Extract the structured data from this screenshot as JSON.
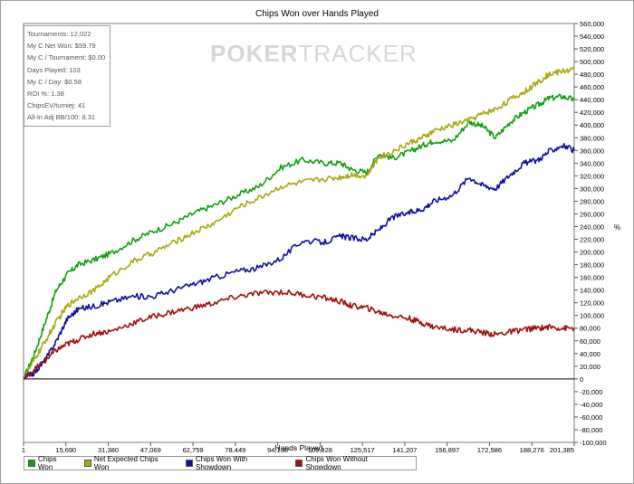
{
  "chart_data": {
    "type": "line",
    "title": "Chips Won over Hands Played",
    "xlabel": "Hands Played",
    "ylabel": "",
    "y2label": "%",
    "xticks": [
      "1",
      "15,690",
      "31,380",
      "47,069",
      "62,759",
      "78,449",
      "94,138",
      "109,828",
      "125,517",
      "141,207",
      "156,897",
      "172,586",
      "188,276",
      "201,385"
    ],
    "xlim": [
      1,
      201385
    ],
    "ylim": [
      -100000,
      560000
    ],
    "ystep": 20000,
    "grid": false,
    "legend_position": "bottom-left",
    "series": [
      {
        "name": "Chips Won",
        "color": "#10a010",
        "x": [
          1,
          4000,
          8000,
          12000,
          16000,
          20000,
          26000,
          32000,
          40000,
          47069,
          55000,
          62759,
          70000,
          78449,
          86000,
          94138,
          102000,
          109828,
          116000,
          120000,
          125517,
          130000,
          135000,
          141207,
          146000,
          150000,
          156897,
          163000,
          168000,
          172586,
          178000,
          183000,
          188276,
          192000,
          197000,
          201385
        ],
        "y": [
          0,
          40000,
          90000,
          140000,
          165000,
          180000,
          188000,
          198000,
          218000,
          232000,
          245000,
          262000,
          274000,
          290000,
          303000,
          333000,
          345000,
          340000,
          340000,
          330000,
          325000,
          355000,
          348000,
          358000,
          368000,
          375000,
          375000,
          405000,
          398000,
          380000,
          405000,
          420000,
          432000,
          442000,
          445000,
          440000
        ]
      },
      {
        "name": "Net Expected Chips Won",
        "color": "#a8a810",
        "x": [
          1,
          4000,
          8000,
          12000,
          16000,
          20000,
          26000,
          32000,
          40000,
          47069,
          55000,
          62759,
          70000,
          78449,
          86000,
          94138,
          102000,
          109828,
          116000,
          120000,
          125517,
          130000,
          135000,
          141207,
          146000,
          150000,
          156897,
          163000,
          168000,
          172586,
          178000,
          183000,
          188276,
          192000,
          197000,
          201385
        ],
        "y": [
          0,
          30000,
          60000,
          90000,
          115000,
          128000,
          140000,
          162000,
          185000,
          198000,
          215000,
          232000,
          246000,
          270000,
          285000,
          303000,
          310000,
          315000,
          318000,
          322000,
          320000,
          350000,
          358000,
          372000,
          380000,
          390000,
          400000,
          408000,
          418000,
          425000,
          440000,
          452000,
          468000,
          480000,
          485000,
          488000
        ]
      },
      {
        "name": "Chips Won With Showdown",
        "color": "#1010a0",
        "x": [
          1,
          4000,
          8000,
          12000,
          16000,
          20000,
          26000,
          32000,
          40000,
          47069,
          55000,
          62759,
          70000,
          78449,
          86000,
          94138,
          102000,
          109828,
          116000,
          120000,
          125517,
          130000,
          135000,
          141207,
          146000,
          150000,
          156897,
          163000,
          168000,
          172586,
          178000,
          183000,
          188276,
          192000,
          197000,
          201385
        ],
        "y": [
          0,
          10000,
          30000,
          60000,
          95000,
          110000,
          115000,
          122000,
          130000,
          130000,
          140000,
          150000,
          160000,
          170000,
          175000,
          190000,
          218000,
          215000,
          225000,
          222000,
          220000,
          235000,
          255000,
          262000,
          268000,
          280000,
          290000,
          318000,
          305000,
          300000,
          322000,
          340000,
          345000,
          358000,
          368000,
          360000
        ]
      },
      {
        "name": "Chips Won Without Showdown",
        "color": "#a01010",
        "x": [
          1,
          4000,
          8000,
          12000,
          16000,
          20000,
          26000,
          32000,
          40000,
          47069,
          55000,
          62759,
          70000,
          78449,
          86000,
          94138,
          102000,
          109828,
          116000,
          120000,
          125517,
          130000,
          135000,
          141207,
          146000,
          150000,
          156897,
          163000,
          168000,
          172586,
          178000,
          183000,
          188276,
          192000,
          197000,
          201385
        ],
        "y": [
          0,
          15000,
          30000,
          45000,
          55000,
          62000,
          72000,
          75000,
          88000,
          98000,
          106000,
          113000,
          120000,
          130000,
          135000,
          137000,
          133000,
          128000,
          122000,
          115000,
          112000,
          105000,
          100000,
          95000,
          88000,
          82000,
          78000,
          77000,
          73000,
          70000,
          74000,
          78000,
          80000,
          82000,
          80000,
          80000
        ]
      }
    ]
  },
  "stats_box": [
    "Tournaments: 12,022",
    "My C Net Won: $59.79",
    "My C / Tournament: $0.00",
    "Days Played: 103",
    "My C / Day: $0.58",
    "ROI %: 1.38",
    "ChipsEV/turniej: 41",
    "All-In Adj BB/100: 8.31"
  ],
  "watermark": {
    "part1": "POKER",
    "part2": "TRACKER"
  }
}
